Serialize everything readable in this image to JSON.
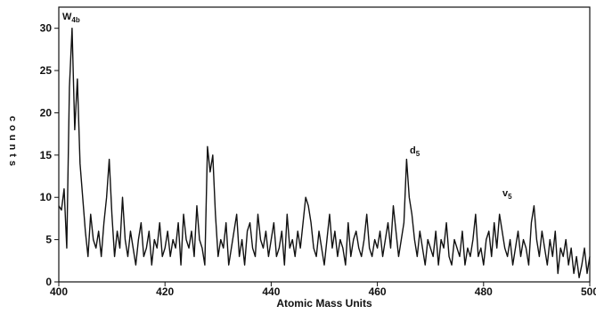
{
  "chart_data": {
    "type": "line",
    "xlabel": "Atomic Mass Units",
    "ylabel": "counts",
    "annotations": [
      {
        "text": "W",
        "sub": "4b"
      },
      {
        "text": "d",
        "sub": "5"
      },
      {
        "text": "v",
        "sub": "5"
      }
    ],
    "xlim": [
      400,
      500
    ],
    "ylim": [
      0,
      32.5
    ],
    "xticks": [
      400,
      420,
      440,
      460,
      480,
      500
    ],
    "yticks": [
      0,
      5,
      10,
      15,
      20,
      25,
      30
    ],
    "x": [
      400,
      400.5,
      401,
      401.5,
      402,
      402.5,
      403,
      403.5,
      404,
      404.5,
      405,
      405.5,
      406,
      406.5,
      407,
      407.5,
      408,
      408.5,
      409,
      409.5,
      410,
      410.5,
      411,
      411.5,
      412,
      412.5,
      413,
      413.5,
      414,
      414.5,
      415,
      415.5,
      416,
      416.5,
      417,
      417.5,
      418,
      418.5,
      419,
      419.5,
      420,
      420.5,
      421,
      421.5,
      422,
      422.5,
      423,
      423.5,
      424,
      424.5,
      425,
      425.5,
      426,
      426.5,
      427,
      427.5,
      428,
      428.5,
      429,
      429.5,
      430,
      430.5,
      431,
      431.5,
      432,
      432.5,
      433,
      433.5,
      434,
      434.5,
      435,
      435.5,
      436,
      436.5,
      437,
      437.5,
      438,
      438.5,
      439,
      439.5,
      440,
      440.5,
      441,
      441.5,
      442,
      442.5,
      443,
      443.5,
      444,
      444.5,
      445,
      445.5,
      446,
      446.5,
      447,
      447.5,
      448,
      448.5,
      449,
      449.5,
      450,
      450.5,
      451,
      451.5,
      452,
      452.5,
      453,
      453.5,
      454,
      454.5,
      455,
      455.5,
      456,
      456.5,
      457,
      457.5,
      458,
      458.5,
      459,
      459.5,
      460,
      460.5,
      461,
      461.5,
      462,
      462.5,
      463,
      463.5,
      464,
      464.5,
      465,
      465.5,
      466,
      466.5,
      467,
      467.5,
      468,
      468.5,
      469,
      469.5,
      470,
      470.5,
      471,
      471.5,
      472,
      472.5,
      473,
      473.5,
      474,
      474.5,
      475,
      475.5,
      476,
      476.5,
      477,
      477.5,
      478,
      478.5,
      479,
      479.5,
      480,
      480.5,
      481,
      481.5,
      482,
      482.5,
      483,
      483.5,
      484,
      484.5,
      485,
      485.5,
      486,
      486.5,
      487,
      487.5,
      488,
      488.5,
      489,
      489.5,
      490,
      490.5,
      491,
      491.5,
      492,
      492.5,
      493,
      493.5,
      494,
      494.5,
      495,
      495.5,
      496,
      496.5,
      497,
      497.5,
      498,
      498.5,
      499,
      499.5,
      500
    ],
    "series": [
      {
        "color": "#111111",
        "values": [
          9,
          8.5,
          11,
          4,
          23,
          30,
          18,
          24,
          14,
          10,
          6,
          3,
          8,
          5,
          4,
          6,
          3,
          7,
          10,
          14.5,
          8,
          3,
          6,
          4,
          10,
          5,
          3,
          6,
          4,
          2,
          5,
          7,
          3,
          4,
          6,
          2,
          5,
          4,
          7,
          3,
          4,
          6,
          3,
          5,
          4,
          7,
          2,
          8,
          5,
          4,
          6,
          3,
          9,
          5,
          4,
          2,
          16,
          13,
          15,
          8,
          3,
          5,
          4,
          7,
          2,
          4,
          6,
          8,
          3,
          5,
          2,
          6,
          7,
          4,
          3,
          8,
          5,
          4,
          6,
          3,
          5,
          7,
          3,
          4,
          6,
          2,
          8,
          4,
          5,
          3,
          6,
          4,
          7,
          10,
          9,
          7,
          4,
          3,
          6,
          4,
          2,
          5,
          8,
          4,
          6,
          3,
          5,
          4,
          2,
          7,
          3,
          5,
          6,
          4,
          3,
          5,
          8,
          4,
          3,
          5,
          4,
          6,
          3,
          5,
          7,
          4,
          9,
          6,
          3,
          5,
          7,
          14.5,
          10,
          8,
          5,
          3,
          6,
          4,
          2,
          5,
          4,
          3,
          6,
          2,
          5,
          4,
          7,
          3,
          2,
          5,
          4,
          3,
          6,
          2,
          4,
          3,
          5,
          8,
          3,
          4,
          2,
          5,
          6,
          3,
          7,
          4,
          8,
          6,
          4,
          3,
          5,
          2,
          4,
          6,
          3,
          5,
          4,
          2,
          7,
          9,
          5,
          3,
          6,
          4,
          2,
          5,
          3,
          6,
          1,
          4,
          3,
          5,
          2,
          4,
          1,
          3,
          0.5,
          2,
          4,
          1,
          3
        ]
      }
    ]
  }
}
